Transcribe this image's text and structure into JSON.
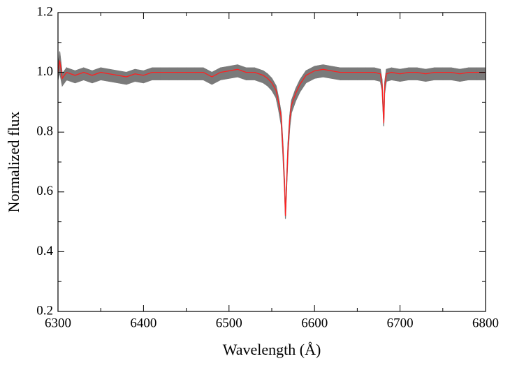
{
  "chart_data": {
    "type": "line",
    "xlabel": "Wavelength (Å)",
    "ylabel": "Normalized flux",
    "x": [
      6300,
      6302,
      6305,
      6310,
      6320,
      6330,
      6340,
      6350,
      6360,
      6370,
      6380,
      6390,
      6400,
      6410,
      6420,
      6430,
      6440,
      6450,
      6460,
      6470,
      6480,
      6490,
      6500,
      6510,
      6520,
      6530,
      6540,
      6545,
      6550,
      6555,
      6558,
      6561,
      6563,
      6565,
      6566,
      6567,
      6569,
      6571,
      6573,
      6578,
      6583,
      6590,
      6600,
      6610,
      6620,
      6630,
      6640,
      6650,
      6660,
      6670,
      6677,
      6679,
      6681,
      6682,
      6684,
      6690,
      6700,
      6710,
      6720,
      6730,
      6740,
      6750,
      6760,
      6770,
      6780,
      6790,
      6800
    ],
    "series": [
      {
        "color": "#7a7a7a",
        "values": [
          1.015,
          1.07,
          0.995,
          1.015,
          1.005,
          1.015,
          1.005,
          1.015,
          1.01,
          1.005,
          1.0,
          1.01,
          1.005,
          1.015,
          1.015,
          1.015,
          1.015,
          1.015,
          1.015,
          1.015,
          1.0,
          1.015,
          1.02,
          1.025,
          1.015,
          1.015,
          1.005,
          0.995,
          0.98,
          0.955,
          0.915,
          0.865,
          0.765,
          0.635,
          0.53,
          0.615,
          0.765,
          0.855,
          0.905,
          0.945,
          0.975,
          1.005,
          1.02,
          1.025,
          1.02,
          1.015,
          1.015,
          1.015,
          1.015,
          1.015,
          1.01,
          0.975,
          0.845,
          0.965,
          1.01,
          1.015,
          1.01,
          1.015,
          1.015,
          1.01,
          1.015,
          1.015,
          1.015,
          1.01,
          1.015,
          1.015,
          1.015
        ]
      },
      {
        "color": "#7a7a7a",
        "values": [
          0.975,
          1.0,
          0.955,
          0.975,
          0.965,
          0.975,
          0.965,
          0.975,
          0.97,
          0.965,
          0.96,
          0.97,
          0.965,
          0.975,
          0.975,
          0.975,
          0.975,
          0.975,
          0.975,
          0.975,
          0.96,
          0.975,
          0.98,
          0.985,
          0.975,
          0.975,
          0.965,
          0.955,
          0.94,
          0.915,
          0.875,
          0.825,
          0.725,
          0.6,
          0.51,
          0.585,
          0.725,
          0.815,
          0.865,
          0.905,
          0.935,
          0.965,
          0.98,
          0.985,
          0.98,
          0.975,
          0.975,
          0.975,
          0.975,
          0.975,
          0.97,
          0.94,
          0.82,
          0.93,
          0.97,
          0.975,
          0.97,
          0.975,
          0.975,
          0.97,
          0.975,
          0.975,
          0.975,
          0.97,
          0.975,
          0.975,
          0.975
        ]
      },
      {
        "color": "#ff2020",
        "values": [
          1.0,
          1.04,
          0.98,
          1.0,
          0.99,
          1.0,
          0.99,
          1.0,
          0.995,
          0.99,
          0.985,
          0.995,
          0.99,
          1.0,
          1.0,
          1.0,
          1.0,
          1.0,
          1.0,
          1.0,
          0.985,
          1.0,
          1.005,
          1.01,
          1.0,
          1.0,
          0.99,
          0.98,
          0.965,
          0.94,
          0.9,
          0.85,
          0.75,
          0.62,
          0.52,
          0.6,
          0.75,
          0.84,
          0.89,
          0.93,
          0.96,
          0.99,
          1.005,
          1.01,
          1.005,
          1.0,
          1.0,
          1.0,
          1.0,
          1.0,
          0.995,
          0.96,
          0.83,
          0.95,
          0.995,
          1.0,
          0.995,
          1.0,
          1.0,
          0.995,
          1.0,
          1.0,
          1.0,
          0.995,
          1.0,
          1.0,
          1.0
        ]
      }
    ],
    "xlim": [
      6300,
      6800
    ],
    "xticks": [
      6300,
      6400,
      6500,
      6600,
      6700,
      6800
    ],
    "xminor_ticks": [
      6350,
      6450,
      6550,
      6650,
      6750
    ],
    "ylim": [
      0.2,
      1.2
    ],
    "yticks": [
      0.2,
      0.4,
      0.6,
      0.8,
      {
        "value": 1,
        "label": "1.0"
      },
      1.2
    ],
    "yminor_ticks": [
      0.3,
      0.5,
      0.7,
      0.9,
      1.1
    ]
  }
}
